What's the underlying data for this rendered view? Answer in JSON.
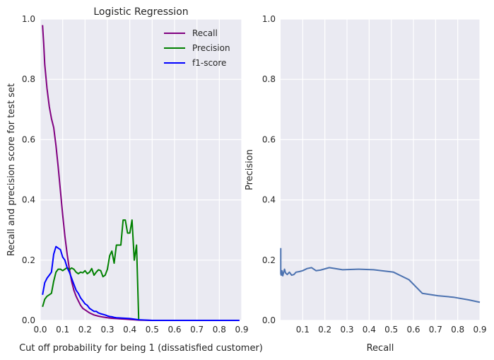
{
  "chart_data": [
    {
      "type": "line",
      "title": "Logistic Regression",
      "xlabel": "Cut off probability for being 1 (dissatisfied customer)",
      "ylabel": "Recall and precision score for test set",
      "xlim": [
        0.0,
        0.9
      ],
      "ylim": [
        0.0,
        1.0
      ],
      "xticks": [
        0.0,
        0.1,
        0.2,
        0.3,
        0.4,
        0.5,
        0.6,
        0.7,
        0.8,
        0.9
      ],
      "xtick_labels": [
        "0.0",
        "0.1",
        "0.2",
        "0.3",
        "0.4",
        "0.5",
        "0.6",
        "0.7",
        "0.8",
        "0.9"
      ],
      "yticks": [
        0.0,
        0.2,
        0.4,
        0.6,
        0.8,
        1.0
      ],
      "ytick_labels": [
        "0.0",
        "0.2",
        "0.4",
        "0.6",
        "0.8",
        "1.0"
      ],
      "grid": true,
      "legend_position": "top-right",
      "series": [
        {
          "name": "Recall",
          "color": "#800080",
          "x": [
            0.01,
            0.015,
            0.02,
            0.03,
            0.04,
            0.05,
            0.06,
            0.07,
            0.08,
            0.09,
            0.1,
            0.11,
            0.12,
            0.13,
            0.14,
            0.15,
            0.16,
            0.17,
            0.18,
            0.19,
            0.2,
            0.22,
            0.24,
            0.26,
            0.28,
            0.3,
            0.32,
            0.34,
            0.36,
            0.38,
            0.4,
            0.42,
            0.44,
            0.5,
            0.6,
            0.7,
            0.8,
            0.89
          ],
          "y": [
            0.98,
            0.92,
            0.85,
            0.77,
            0.71,
            0.67,
            0.64,
            0.58,
            0.51,
            0.43,
            0.35,
            0.28,
            0.22,
            0.17,
            0.13,
            0.1,
            0.08,
            0.065,
            0.05,
            0.04,
            0.035,
            0.025,
            0.018,
            0.014,
            0.011,
            0.009,
            0.007,
            0.006,
            0.005,
            0.004,
            0.003,
            0.002,
            0.001,
            0.0,
            0.0,
            0.0,
            0.0,
            0.0
          ]
        },
        {
          "name": "Precision",
          "color": "#008000",
          "x": [
            0.01,
            0.02,
            0.03,
            0.04,
            0.05,
            0.06,
            0.07,
            0.08,
            0.09,
            0.1,
            0.11,
            0.12,
            0.13,
            0.14,
            0.15,
            0.16,
            0.17,
            0.18,
            0.19,
            0.2,
            0.21,
            0.22,
            0.23,
            0.24,
            0.25,
            0.26,
            0.27,
            0.28,
            0.29,
            0.3,
            0.31,
            0.32,
            0.33,
            0.34,
            0.35,
            0.36,
            0.37,
            0.38,
            0.39,
            0.4,
            0.41,
            0.42,
            0.43,
            0.44
          ],
          "y": [
            0.045,
            0.07,
            0.08,
            0.085,
            0.09,
            0.13,
            0.16,
            0.17,
            0.17,
            0.165,
            0.17,
            0.175,
            0.168,
            0.174,
            0.17,
            0.16,
            0.155,
            0.16,
            0.158,
            0.165,
            0.155,
            0.16,
            0.172,
            0.15,
            0.16,
            0.168,
            0.165,
            0.145,
            0.15,
            0.17,
            0.215,
            0.23,
            0.19,
            0.25,
            0.25,
            0.25,
            0.333,
            0.333,
            0.29,
            0.29,
            0.333,
            0.2,
            0.25,
            0.0
          ]
        },
        {
          "name": "f1-score",
          "color": "#0000ff",
          "x": [
            0.01,
            0.02,
            0.03,
            0.04,
            0.05,
            0.06,
            0.07,
            0.08,
            0.09,
            0.1,
            0.11,
            0.12,
            0.13,
            0.14,
            0.15,
            0.16,
            0.17,
            0.18,
            0.19,
            0.2,
            0.21,
            0.22,
            0.23,
            0.24,
            0.25,
            0.26,
            0.27,
            0.28,
            0.29,
            0.3,
            0.31,
            0.32,
            0.33,
            0.34,
            0.36,
            0.38,
            0.4,
            0.42,
            0.44,
            0.5,
            0.6,
            0.7,
            0.8,
            0.89
          ],
          "y": [
            0.085,
            0.125,
            0.14,
            0.15,
            0.16,
            0.22,
            0.245,
            0.24,
            0.235,
            0.21,
            0.2,
            0.175,
            0.16,
            0.14,
            0.12,
            0.1,
            0.09,
            0.075,
            0.065,
            0.055,
            0.05,
            0.04,
            0.035,
            0.03,
            0.03,
            0.025,
            0.022,
            0.02,
            0.018,
            0.015,
            0.013,
            0.012,
            0.01,
            0.009,
            0.008,
            0.007,
            0.006,
            0.004,
            0.002,
            0.0,
            0.0,
            0.0,
            0.0,
            0.0
          ]
        }
      ]
    },
    {
      "type": "line",
      "title": "",
      "xlabel": "Recall",
      "ylabel": "Precision",
      "xlim": [
        0.0,
        0.9
      ],
      "ylim": [
        0.0,
        1.0
      ],
      "xticks": [
        0.1,
        0.2,
        0.3,
        0.4,
        0.5,
        0.6,
        0.7,
        0.8,
        0.9
      ],
      "xtick_labels": [
        "0.1",
        "0.2",
        "0.3",
        "0.4",
        "0.5",
        "0.6",
        "0.7",
        "0.8",
        "0.9"
      ],
      "yticks": [
        0.0,
        0.2,
        0.4,
        0.6,
        0.8,
        1.0
      ],
      "ytick_labels": [
        "0.0",
        "0.2",
        "0.4",
        "0.6",
        "0.8",
        "1.0"
      ],
      "grid": true,
      "series": [
        {
          "color": "#4c72b0",
          "x": [
            0.001,
            0.001,
            0.003,
            0.006,
            0.01,
            0.014,
            0.018,
            0.022,
            0.03,
            0.04,
            0.05,
            0.06,
            0.07,
            0.085,
            0.1,
            0.12,
            0.14,
            0.16,
            0.18,
            0.22,
            0.28,
            0.35,
            0.42,
            0.51,
            0.58,
            0.64,
            0.71,
            0.78,
            0.85,
            0.9
          ],
          "y": [
            0.24,
            0.155,
            0.15,
            0.165,
            0.148,
            0.16,
            0.17,
            0.158,
            0.152,
            0.16,
            0.15,
            0.152,
            0.16,
            0.162,
            0.165,
            0.172,
            0.175,
            0.165,
            0.167,
            0.175,
            0.168,
            0.17,
            0.168,
            0.16,
            0.135,
            0.09,
            0.082,
            0.077,
            0.068,
            0.06
          ]
        }
      ]
    }
  ]
}
